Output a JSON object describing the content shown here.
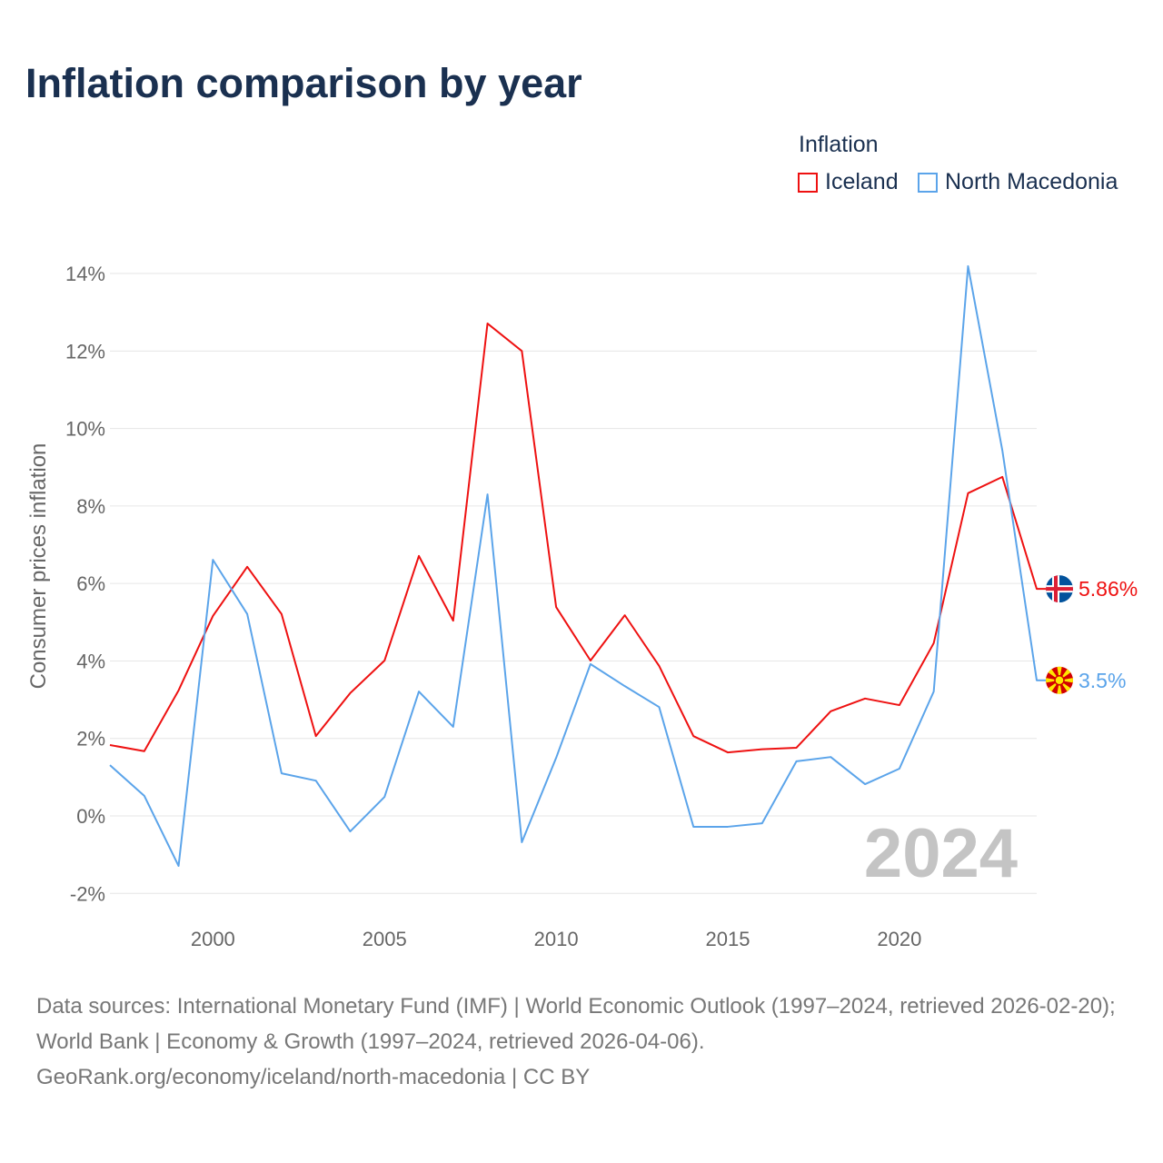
{
  "title": "Inflation comparison by year",
  "legend": {
    "title": "Inflation",
    "items": [
      "Iceland",
      "North Macedonia"
    ]
  },
  "footer": {
    "sources": "Data sources: International Monetary Fund (IMF) | World Economic Outlook (1997–2024, retrieved 2026-02-20); World Bank | Economy & Growth (1997–2024, retrieved 2026-04-06).",
    "credit": "GeoRank.org/economy/iceland/north-macedonia | CC BY"
  },
  "chart_data": {
    "type": "line",
    "title": "Inflation comparison by year",
    "xlabel": "",
    "ylabel": "Consumer prices inflation",
    "year_watermark": "2024",
    "x": [
      1997,
      1998,
      1999,
      2000,
      2001,
      2002,
      2003,
      2004,
      2005,
      2006,
      2007,
      2008,
      2009,
      2010,
      2011,
      2012,
      2013,
      2014,
      2015,
      2016,
      2017,
      2018,
      2019,
      2020,
      2021,
      2022,
      2023,
      2024
    ],
    "xlim": [
      1997,
      2024
    ],
    "ylim": [
      -2.7,
      14.5
    ],
    "xticks": [
      2000,
      2005,
      2010,
      2015,
      2020
    ],
    "yticks": [
      -2,
      0,
      2,
      4,
      6,
      8,
      10,
      12,
      14
    ],
    "ytick_labels": [
      "-2%",
      "0%",
      "2%",
      "4%",
      "6%",
      "8%",
      "10%",
      "12%",
      "14%"
    ],
    "grid": true,
    "legend_position": "top-right",
    "series": [
      {
        "name": "Iceland",
        "color": "#ee1111",
        "end_label": "5.86%",
        "flag": "iceland",
        "values": [
          1.83,
          1.67,
          3.24,
          5.16,
          6.43,
          5.21,
          2.06,
          3.17,
          4.01,
          6.71,
          5.04,
          12.71,
          12.0,
          5.39,
          4.01,
          5.18,
          3.87,
          2.06,
          1.64,
          1.72,
          1.76,
          2.7,
          3.03,
          2.86,
          4.46,
          8.33,
          8.75,
          5.86
        ]
      },
      {
        "name": "North Macedonia",
        "color": "#5ba4ea",
        "end_label": "3.5%",
        "flag": "north-macedonia",
        "values": [
          1.31,
          0.52,
          -1.29,
          6.61,
          5.21,
          1.1,
          0.91,
          -0.4,
          0.49,
          3.21,
          2.3,
          8.3,
          -0.68,
          1.5,
          3.92,
          3.35,
          2.81,
          -0.28,
          -0.28,
          -0.19,
          1.41,
          1.52,
          0.82,
          1.22,
          3.21,
          14.19,
          9.43,
          3.5
        ]
      }
    ]
  }
}
